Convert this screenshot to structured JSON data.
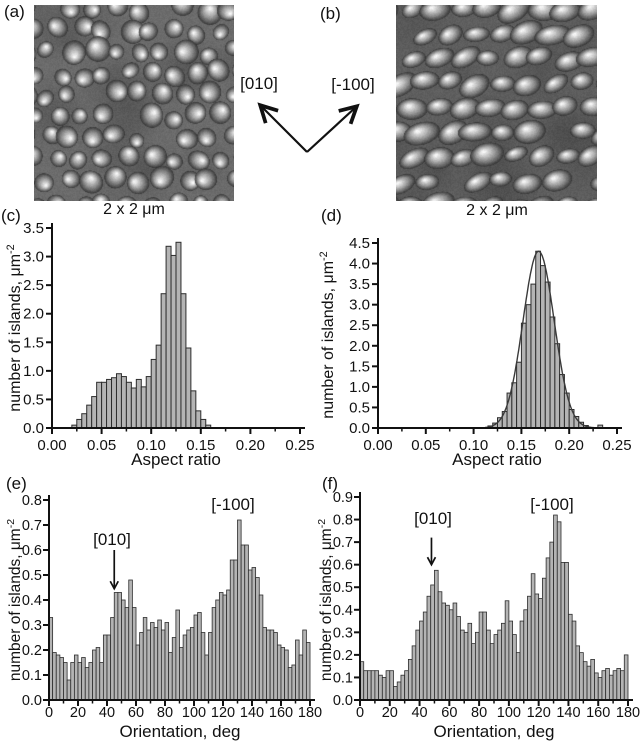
{
  "figure": {
    "panels": {
      "a": {
        "label": "(a)",
        "caption": "2 x 2 μm",
        "description": "AFM image, rounded islands"
      },
      "b": {
        "label": "(b)",
        "caption": "2 x 2 μm",
        "description": "AFM image, elongated islands"
      },
      "c": {
        "label": "(c)"
      },
      "d": {
        "label": "(d)"
      },
      "e": {
        "label": "(e)"
      },
      "f": {
        "label": "(f)"
      }
    },
    "direction_labels": {
      "left": "[010]",
      "right": "[-100]"
    }
  },
  "chart_data": [
    {
      "type": "bar",
      "panel": "c",
      "xlabel": "Aspect ratio",
      "ylabel": "number of islands, μm",
      "ylabel_sup": "-2",
      "xlim": [
        0,
        0.25
      ],
      "ylim": [
        0,
        3.5
      ],
      "bin_start": 0.02,
      "bin_width": 0.005,
      "values": [
        0.05,
        0.15,
        0.25,
        0.4,
        0.55,
        0.8,
        0.8,
        0.85,
        0.88,
        0.95,
        0.9,
        0.8,
        0.7,
        0.85,
        0.72,
        0.9,
        1.2,
        1.45,
        2.35,
        3.18,
        3.02,
        3.25,
        2.35,
        1.4,
        0.65,
        0.3,
        0.15,
        0.05
      ],
      "xticks": {
        "values": [
          0,
          0.05,
          0.1,
          0.15,
          0.2,
          0.25
        ],
        "labels": [
          "0.00",
          "0.05",
          "0.10",
          "0.15",
          "0.20",
          "0.25"
        ],
        "minor": [
          0.025,
          0.075,
          0.125,
          0.175,
          0.225
        ]
      },
      "yticks": {
        "values": [
          0,
          0.5,
          1.0,
          1.5,
          2.0,
          2.5,
          3.0,
          3.5
        ],
        "labels": [
          "0.0",
          "0.5",
          "1.0",
          "1.5",
          "2.0",
          "2.5",
          "3.0",
          "3.5"
        ]
      }
    },
    {
      "type": "bar",
      "panel": "d",
      "xlabel": "Aspect ratio",
      "ylabel": "number of islands, μm",
      "ylabel_sup": "-2",
      "xlim": [
        0,
        0.25
      ],
      "ylim": [
        0,
        4.5
      ],
      "bin_start": 0.115,
      "bin_width": 0.005,
      "values": [
        0.05,
        0.12,
        0.25,
        0.4,
        0.85,
        1.1,
        1.6,
        2.55,
        3.0,
        3.5,
        4.3,
        3.95,
        3.55,
        2.7,
        2.05,
        1.3,
        0.85,
        0.45,
        0.28,
        0.14,
        0.06,
        0,
        0,
        0.07
      ],
      "fit": {
        "type": "gaussian",
        "amplitude": 4.3,
        "center": 0.168,
        "sigma": 0.0163,
        "range": [
          0.112,
          0.235
        ]
      },
      "xticks": {
        "values": [
          0,
          0.05,
          0.1,
          0.15,
          0.2,
          0.25
        ],
        "labels": [
          "0.00",
          "0.05",
          "0.10",
          "0.15",
          "0.20",
          "0.25"
        ],
        "minor": [
          0.025,
          0.075,
          0.125,
          0.175,
          0.225
        ]
      },
      "yticks": {
        "values": [
          0,
          0.5,
          1.0,
          1.5,
          2.0,
          2.5,
          3.0,
          3.5,
          4.0,
          4.5
        ],
        "labels": [
          "0.0",
          "0.5",
          "1.0",
          "1.5",
          "2.0",
          "2.5",
          "3.0",
          "3.5",
          "4.0",
          "4.5"
        ]
      }
    },
    {
      "type": "bar",
      "panel": "e",
      "xlabel": "Orientation, deg",
      "ylabel": "number of islands, μm",
      "ylabel_sup": "-2",
      "xlim": [
        0,
        180
      ],
      "ylim": [
        0,
        0.8
      ],
      "bin_start": 0,
      "bin_width": 2.5,
      "values": [
        0.33,
        0.19,
        0.18,
        0.17,
        0.15,
        0.08,
        0.15,
        0.18,
        0.15,
        0.17,
        0.13,
        0.15,
        0.2,
        0.21,
        0.15,
        0.26,
        0.26,
        0.33,
        0.43,
        0.43,
        0.4,
        0.37,
        0.48,
        0.37,
        0.22,
        0.27,
        0.33,
        0.28,
        0.31,
        0.29,
        0.32,
        0.28,
        0.31,
        0.19,
        0.25,
        0.36,
        0.21,
        0.26,
        0.28,
        0.29,
        0.34,
        0.35,
        0.27,
        0.18,
        0.27,
        0.37,
        0.4,
        0.43,
        0.42,
        0.44,
        0.56,
        0.56,
        0.72,
        0.62,
        0.62,
        0.52,
        0.53,
        0.49,
        0.42,
        0.29,
        0.28,
        0.28,
        0.27,
        0.22,
        0.21,
        0.2,
        0.13,
        0.14,
        0.24,
        0.18,
        0.28,
        0.23
      ],
      "annotations": [
        {
          "label": "[010]",
          "x": 45,
          "arrow": true,
          "arrow_from": 0.6,
          "arrow_to": 0.445
        },
        {
          "label": "[-100]",
          "x": 127,
          "arrow": false
        }
      ],
      "xticks": {
        "values": [
          0,
          20,
          40,
          60,
          80,
          100,
          120,
          140,
          160,
          180
        ],
        "labels": [
          "0",
          "20",
          "40",
          "60",
          "80",
          "100",
          "120",
          "140",
          "160",
          "180"
        ],
        "minor": [
          10,
          30,
          50,
          70,
          90,
          110,
          130,
          150,
          170
        ]
      },
      "yticks": {
        "values": [
          0,
          0.1,
          0.2,
          0.3,
          0.4,
          0.5,
          0.6,
          0.7,
          0.8
        ],
        "labels": [
          "0.0",
          "0.1",
          "0.2",
          "0.3",
          "0.4",
          "0.5",
          "0.6",
          "0.7",
          "0.8"
        ]
      }
    },
    {
      "type": "bar",
      "panel": "f",
      "xlabel": "Orientation, deg",
      "ylabel": "number of islands, μm",
      "ylabel_sup": "-2",
      "xlim": [
        0,
        180
      ],
      "ylim": [
        0,
        0.9
      ],
      "bin_start": 0,
      "bin_width": 2.5,
      "values": [
        0.17,
        0.13,
        0.13,
        0.13,
        0.13,
        0.11,
        0.1,
        0.13,
        0.13,
        0.06,
        0.08,
        0.11,
        0.13,
        0.18,
        0.24,
        0.31,
        0.35,
        0.39,
        0.46,
        0.51,
        0.575,
        0.48,
        0.43,
        0.42,
        0.4,
        0.43,
        0.37,
        0.31,
        0.3,
        0.34,
        0.25,
        0.3,
        0.39,
        0.39,
        0.31,
        0.25,
        0.29,
        0.31,
        0.34,
        0.44,
        0.35,
        0.29,
        0.21,
        0.35,
        0.4,
        0.46,
        0.56,
        0.47,
        0.45,
        0.54,
        0.63,
        0.7,
        0.82,
        0.79,
        0.61,
        0.61,
        0.38,
        0.35,
        0.24,
        0.21,
        0.17,
        0.15,
        0.18,
        0.12,
        0.1,
        0.13,
        0.14,
        0.11,
        0.13,
        0.14,
        0.13,
        0.2
      ],
      "annotations": [
        {
          "label": "[010]",
          "x": 48,
          "arrow": true,
          "arrow_from": 0.72,
          "arrow_to": 0.6
        },
        {
          "label": "[-100]",
          "x": 130,
          "arrow": false
        }
      ],
      "xticks": {
        "values": [
          0,
          20,
          40,
          60,
          80,
          100,
          120,
          140,
          160,
          180
        ],
        "labels": [
          "0",
          "20",
          "40",
          "60",
          "80",
          "100",
          "120",
          "140",
          "160",
          "180"
        ],
        "minor": [
          10,
          30,
          50,
          70,
          90,
          110,
          130,
          150,
          170
        ]
      },
      "yticks": {
        "values": [
          0,
          0.1,
          0.2,
          0.3,
          0.4,
          0.5,
          0.6,
          0.7,
          0.8,
          0.9
        ],
        "labels": [
          "0.0",
          "0.1",
          "0.2",
          "0.3",
          "0.4",
          "0.5",
          "0.6",
          "0.7",
          "0.8",
          "0.9"
        ]
      }
    }
  ]
}
